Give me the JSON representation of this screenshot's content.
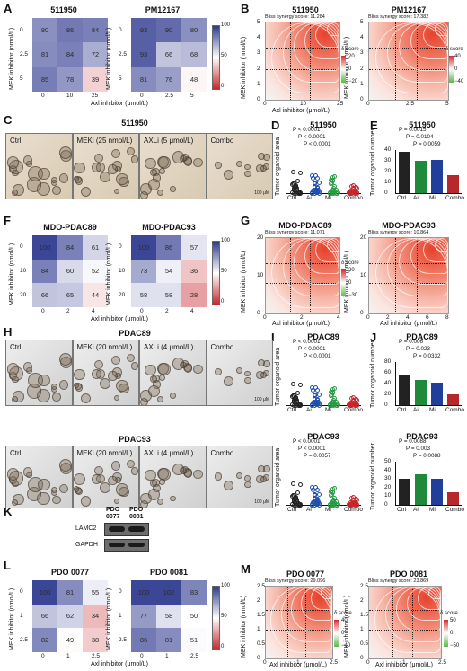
{
  "panels": {
    "A": {
      "letter": "A",
      "titles": [
        "511950",
        "PM12167"
      ],
      "heatmaps": [
        {
          "grid": [
            [
              80,
              86,
              84
            ],
            [
              81,
              84,
              72
            ],
            [
              85,
              78,
              39
            ]
          ],
          "ylab": "MEK inhibitor (nmol/L)",
          "xlab": "Axl inhibitor (μmol/L)",
          "yticks": [
            "0",
            "2.5",
            "5"
          ],
          "xticks": [
            "0",
            "10",
            "25"
          ]
        },
        {
          "grid": [
            [
              93,
              90,
              80
            ],
            [
              93,
              66,
              68
            ],
            [
              81,
              76,
              48
            ]
          ],
          "ylab": "",
          "xlab": "",
          "yticks": [
            "0",
            "2.5",
            "5"
          ],
          "xticks": [
            "0",
            "2.5",
            "5"
          ]
        }
      ],
      "colorbar": [
        "100",
        "50",
        "0"
      ]
    },
    "B": {
      "letter": "B",
      "titles": [
        "511950",
        "PM12167"
      ],
      "scores": [
        "Bliss synergy score: 11.284",
        "Bliss synergy score: 17.382"
      ],
      "ylab": "MEK inhibitor (nmol/L)",
      "xlab": "Axl inhibitor (μmol/L)",
      "yticks1": [
        "5",
        "4",
        "3",
        "2",
        "1",
        "0"
      ],
      "xticks1": [
        "0",
        "10",
        "25"
      ],
      "yticks2": [
        "5",
        "4",
        "3",
        "2",
        "1",
        "0"
      ],
      "xticks2": [
        "0",
        "2.5",
        "5"
      ],
      "legend_title": "δ score",
      "cb1": [
        "20",
        "0",
        "−20"
      ],
      "cb2": [
        "40",
        "0",
        "−40"
      ]
    },
    "C": {
      "letter": "C",
      "title": "511950",
      "images": [
        "Ctrl",
        "MEKi (25 nmol/L)",
        "AXLi (5 μmol/L)",
        "Combo"
      ],
      "scale": "100 μM"
    },
    "D": {
      "letter": "D",
      "title": "511950",
      "ylab": "Tumor organoid area",
      "cats": [
        "Ctrl",
        "Ai",
        "Mi",
        "Combo"
      ],
      "p": [
        "P < 0.0001",
        "P < 0.0001",
        "P < 0.0001"
      ]
    },
    "E": {
      "letter": "E",
      "title": "511950",
      "ylab": "Tumor organoid number",
      "cats": [
        "Ctrl",
        "Ai",
        "Mi",
        "Combo"
      ],
      "values": [
        38,
        30,
        31,
        17
      ],
      "yticks": [
        "40",
        "30",
        "20",
        "10",
        "0"
      ],
      "p": [
        "P = 0.0015",
        "P = 0.0104",
        "P = 0.0059"
      ]
    },
    "F": {
      "letter": "F",
      "titles": [
        "MDO-PDAC89",
        "MDO-PDAC93"
      ],
      "heatmaps": [
        {
          "grid": [
            [
              100,
              84,
              61
            ],
            [
              84,
              60,
              52
            ],
            [
              66,
              65,
              44
            ]
          ],
          "ylab": "MEK inhibitor (nmol/L)",
          "xlab": "Axl inhibitor (μmol/L)",
          "yticks": [
            "0",
            "10",
            "20"
          ],
          "xticks": [
            "0",
            "2",
            "4"
          ]
        },
        {
          "grid": [
            [
              100,
              86,
              57
            ],
            [
              73,
              54,
              36
            ],
            [
              58,
              58,
              28
            ]
          ],
          "ylab": "",
          "xlab": "",
          "yticks": [
            "0",
            "10",
            "20"
          ],
          "xticks": [
            "0",
            "2",
            "4"
          ]
        }
      ],
      "colorbar": [
        "100",
        "50",
        "0"
      ]
    },
    "G": {
      "letter": "G",
      "titles": [
        "MDO-PDAC89",
        "MDO-PDAC93"
      ],
      "scores": [
        "Bliss synergy score: 11.071",
        "Bliss synergy score: 10.864"
      ],
      "ylab": "MEK inhibitor (nmol/L)",
      "xlab": "Axl inhibitor (μmol/L)",
      "yticks": [
        "20",
        "10",
        "0"
      ],
      "xticks1": [
        "0",
        "2",
        "4"
      ],
      "xticks2": [
        "0",
        "2",
        "4",
        "6",
        "8"
      ],
      "legend_title": "δ score",
      "cb": [
        "30",
        "0",
        "−30"
      ]
    },
    "H": {
      "letter": "H",
      "titles": [
        "PDAC89",
        "PDAC93"
      ],
      "images": [
        "Ctrl",
        "MEKi (20 nmol/L)",
        "AXLi (4 μmol/L)",
        "Combo"
      ],
      "scale": "100 μM"
    },
    "I": {
      "letter": "I",
      "titles": [
        "PDAC89",
        "PDAC93"
      ],
      "ylab": "Tumor organoid area",
      "cats": [
        "Ctrl",
        "Ai",
        "Mi",
        "Combo"
      ],
      "p1": [
        "P < 0.0001",
        "P < 0.0001",
        "P < 0.0001"
      ],
      "p2": [
        "P < 0.0001",
        "P < 0.0001",
        "P = 0.0057"
      ]
    },
    "J": {
      "letter": "J",
      "titles": [
        "PDAC89",
        "PDAC93"
      ],
      "ylab": "Tumor organoid number",
      "cats": [
        "Ctrl",
        "Ai",
        "Mi",
        "Combo"
      ],
      "values1": [
        55,
        46,
        42,
        20
      ],
      "values2": [
        30,
        35,
        30,
        15
      ],
      "yticks1": [
        "80",
        "60",
        "40",
        "20",
        "0"
      ],
      "yticks2": [
        "50",
        "40",
        "30",
        "20",
        "10",
        "0"
      ],
      "p1": [
        "P = 0.006",
        "P = 0.023",
        "P = 0.0332"
      ],
      "p2": [
        "P = 0.0088",
        "P = 0.003",
        "P = 0.0088"
      ]
    },
    "K": {
      "letter": "K",
      "cols": [
        "PDO 0077",
        "PDO 0081"
      ],
      "rows": [
        "LAMC2",
        "GAPDH"
      ]
    },
    "L": {
      "letter": "L",
      "titles": [
        "PDO 0077",
        "PDO 0081"
      ],
      "heatmaps": [
        {
          "grid": [
            [
              100,
              81,
              55
            ],
            [
              66,
              62,
              34
            ],
            [
              82,
              49,
              38
            ]
          ],
          "ylab": "MEK inhibitor (nmol/L)",
          "xlab": "Axl inhibitor (μmol/L)",
          "yticks": [
            "0",
            "1",
            "2.5"
          ],
          "xticks": [
            "0",
            "1",
            "2.5"
          ]
        },
        {
          "grid": [
            [
              100,
              102,
              83
            ],
            [
              77,
              58,
              50
            ],
            [
              86,
              81,
              51
            ]
          ],
          "ylab": "",
          "xlab": "",
          "yticks": [
            "0",
            "1",
            "2.5"
          ],
          "xticks": [
            "0",
            "1",
            "2.5"
          ]
        }
      ],
      "colorbar": [
        "100",
        "50",
        "0"
      ]
    },
    "M": {
      "letter": "M",
      "titles": [
        "PDO 0077",
        "PDO 0081"
      ],
      "scores": [
        "Bliss synergy score: 29.096",
        "Bliss synergy score: 23.869"
      ],
      "ylab": "MEK inhibitor (nmol/L)",
      "xlab": "Axl inhibitor (μmol/L)",
      "yticks": [
        "2.5",
        "2",
        "1.5",
        "1",
        "0.5",
        "0"
      ],
      "xticks": [
        "0",
        "1",
        "2.5"
      ],
      "legend_title": "δ score",
      "cb1": [
        "40",
        "0",
        "−40"
      ],
      "cb2": [
        "50",
        "0",
        "−50"
      ]
    }
  }
}
